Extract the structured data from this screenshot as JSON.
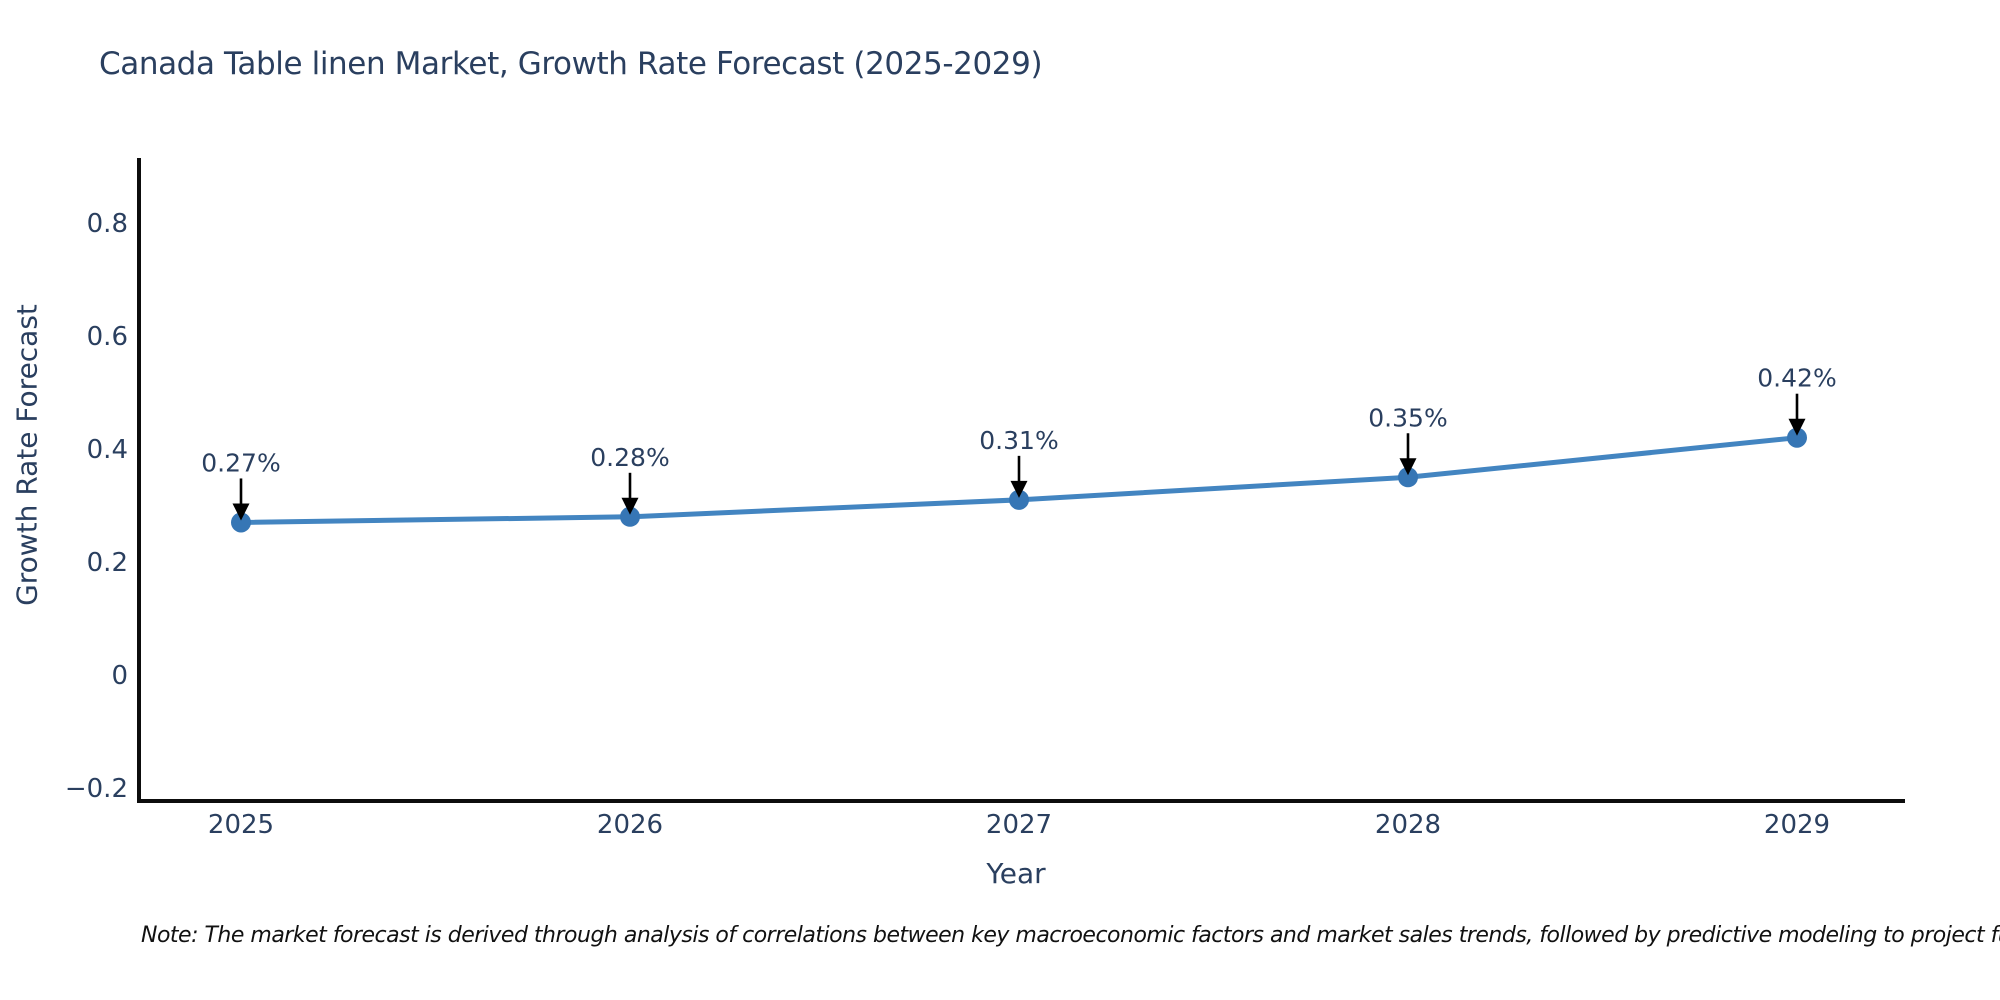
{
  "title": "Canada Table linen Market, Growth Rate Forecast (2025-2029)",
  "note": "Note: The market forecast is derived through analysis of correlations between key macroeconomic factors and market sales trends, followed by predictive modeling to project future sal",
  "chart_data": {
    "type": "line",
    "title": "Canada Table linen Market, Growth Rate Forecast (2025-2029)",
    "xlabel": "Year",
    "ylabel": "Growth Rate Forecast",
    "x": [
      2025,
      2026,
      2027,
      2028,
      2029
    ],
    "x_tick_labels": [
      "2025",
      "2026",
      "2027",
      "2028",
      "2029"
    ],
    "series": [
      {
        "name": "Growth Rate Forecast",
        "values": [
          0.27,
          0.28,
          0.31,
          0.35,
          0.42
        ]
      }
    ],
    "point_labels": [
      "0.27%",
      "0.28%",
      "0.31%",
      "0.35%",
      "0.42%"
    ],
    "y_ticks": [
      {
        "label": "−0.2",
        "value": -0.2
      },
      {
        "label": "0",
        "value": 0
      },
      {
        "label": "0.2",
        "value": 0.2
      },
      {
        "label": "0.4",
        "value": 0.4
      },
      {
        "label": "0.6",
        "value": 0.6
      },
      {
        "label": "0.8",
        "value": 0.8
      }
    ],
    "ylim": [
      -0.22,
      0.92
    ],
    "grid": false,
    "legend_position": "none",
    "colors": {
      "line": "#4385c1",
      "marker": "#3676b5",
      "text": "#2a3f5f",
      "axis": "#0d0d0d",
      "arrow": "#000000",
      "background": "#ffffff"
    }
  }
}
